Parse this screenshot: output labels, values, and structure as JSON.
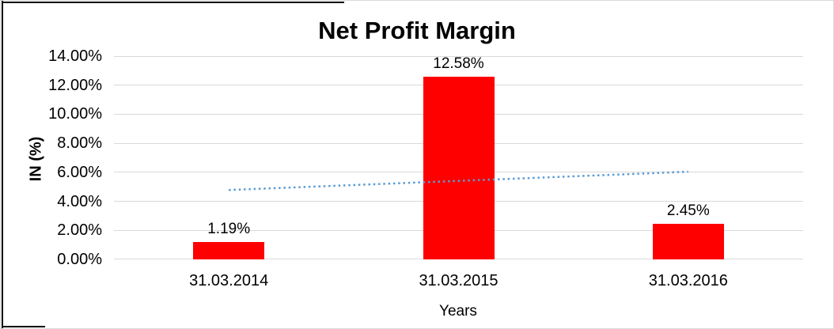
{
  "chart_data": {
    "type": "bar",
    "title": "Net Profit Margin",
    "xlabel": "Years",
    "ylabel": "IN (%)",
    "categories": [
      "31.03.2014",
      "31.03.2015",
      "31.03.2016"
    ],
    "series": [
      {
        "name": "Net Profit Margin",
        "values": [
          1.19,
          12.58,
          2.45
        ]
      }
    ],
    "data_labels": [
      "1.19%",
      "12.58%",
      "2.45%"
    ],
    "ylim": [
      0,
      14
    ],
    "ytick_values": [
      0,
      2,
      4,
      6,
      8,
      10,
      12,
      14
    ],
    "ytick_labels": [
      "0.00%",
      "2.00%",
      "4.00%",
      "6.00%",
      "8.00%",
      "10.00%",
      "12.00%",
      "14.00%"
    ],
    "grid": true,
    "legend": "none",
    "trendline": {
      "type": "linear",
      "style": "dotted",
      "start_value": 4.78,
      "end_value": 6.04
    },
    "colors": {
      "bar": "#ff0000",
      "trendline": "#5b9bd5",
      "gridline": "#d9d9d9",
      "text": "#000000",
      "frame_border": "#d9d9d9",
      "partial_border": "#000000"
    }
  }
}
